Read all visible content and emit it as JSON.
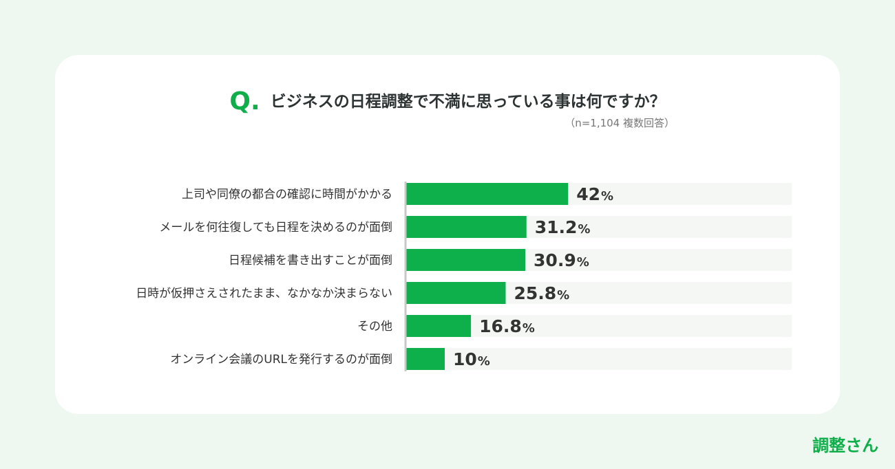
{
  "question": {
    "mark": "Q.",
    "title": "ビジネスの日程調整で不満に思っている事は何ですか？",
    "note": "（n=1,104 複数回答）"
  },
  "brand": {
    "name": "調整さん"
  },
  "colors": {
    "bar": "#0db04b",
    "track": "#f5f7f5",
    "axis": "#c8c8c8",
    "background": "#eef8f0"
  },
  "chart_data": {
    "type": "bar",
    "orientation": "horizontal",
    "categories": [
      "上司や同僚の都合の確認に時間がかかる",
      "メールを何往復しても日程を決めるのが面倒",
      "日程候補を書き出すことが面倒",
      "日時が仮押さえされたまま、なかなか決まらない",
      "その他",
      "オンライン会議のURLを発行するのが面倒"
    ],
    "values": [
      42,
      31.2,
      30.9,
      25.8,
      16.8,
      10
    ],
    "value_labels": [
      "42",
      "31.2",
      "30.9",
      "25.8",
      "16.8",
      "10"
    ],
    "unit": "%",
    "xlim": [
      0,
      100
    ]
  }
}
